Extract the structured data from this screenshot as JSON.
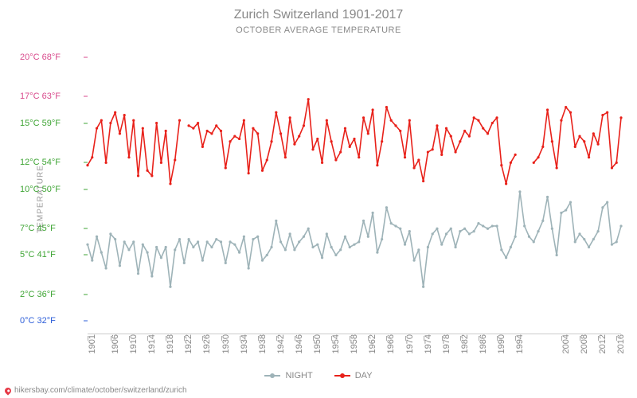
{
  "chart": {
    "type": "line",
    "title": "Zurich Switzerland 1901-2017",
    "subtitle": "OCTOBER AVERAGE TEMPERATURE",
    "y_axis_label": "TEMPERATURE",
    "background_color": "#ffffff",
    "title_fontsize": 16,
    "title_color": "#888888",
    "subtitle_fontsize": 11,
    "subtitle_color": "#888888",
    "axis_label_color": "#999999",
    "xlabel_color": "#888888",
    "grid_color": "#cccccc",
    "x_range": [
      1901,
      2017
    ],
    "y_range_c": [
      -1,
      21
    ],
    "y_ticks": [
      {
        "c": 0,
        "f": 32,
        "label_c": "0°C",
        "label_f": "32°F",
        "color": "#2e5fd9"
      },
      {
        "c": 2,
        "f": 36,
        "label_c": "2°C",
        "label_f": "36°F",
        "color": "#3fa535"
      },
      {
        "c": 5,
        "f": 41,
        "label_c": "5°C",
        "label_f": "41°F",
        "color": "#3fa535"
      },
      {
        "c": 7,
        "f": 45,
        "label_c": "7°C",
        "label_f": "45°F",
        "color": "#3fa535"
      },
      {
        "c": 10,
        "f": 50,
        "label_c": "10°C",
        "label_f": "50°F",
        "color": "#3fa535"
      },
      {
        "c": 12,
        "f": 54,
        "label_c": "12°C",
        "label_f": "54°F",
        "color": "#3fa535"
      },
      {
        "c": 15,
        "f": 59,
        "label_c": "15°C",
        "label_f": "59°F",
        "color": "#3fa535"
      },
      {
        "c": 17,
        "f": 63,
        "label_c": "17°C",
        "label_f": "63°F",
        "color": "#d94a8c"
      },
      {
        "c": 20,
        "f": 68,
        "label_c": "20°C",
        "label_f": "68°F",
        "color": "#d94a8c"
      }
    ],
    "x_ticks": [
      1901,
      1906,
      1910,
      1914,
      1918,
      1922,
      1926,
      1930,
      1934,
      1938,
      1942,
      1946,
      1950,
      1954,
      1958,
      1962,
      1966,
      1970,
      1974,
      1978,
      1982,
      1986,
      1990,
      1994,
      2004,
      2008,
      2012,
      2016
    ],
    "line_width": 1.6,
    "marker_radius": 1.6,
    "series": {
      "night": {
        "label": "NIGHT",
        "color": "#9eb3b8",
        "data": {
          "1901": 5.8,
          "1902": 4.6,
          "1903": 6.4,
          "1904": 5.2,
          "1905": 4.0,
          "1906": 6.6,
          "1907": 6.2,
          "1908": 4.2,
          "1909": 6.0,
          "1910": 5.4,
          "1911": 6.0,
          "1912": 3.6,
          "1913": 5.8,
          "1914": 5.2,
          "1915": 3.4,
          "1916": 5.6,
          "1917": 4.8,
          "1918": 5.6,
          "1919": 2.6,
          "1920": 5.4,
          "1921": 6.2,
          "1922": 4.4,
          "1923": 6.2,
          "1924": 5.6,
          "1925": 6.0,
          "1926": 4.6,
          "1927": 6.0,
          "1928": 5.6,
          "1929": 6.2,
          "1930": 6.0,
          "1931": 4.4,
          "1932": 6.0,
          "1933": 5.8,
          "1934": 5.2,
          "1935": 6.4,
          "1936": 4.0,
          "1937": 6.2,
          "1938": 6.4,
          "1939": 4.6,
          "1940": 5.0,
          "1941": 5.6,
          "1942": 7.6,
          "1943": 6.0,
          "1944": 5.4,
          "1945": 6.6,
          "1946": 5.4,
          "1947": 6.0,
          "1948": 6.4,
          "1949": 7.0,
          "1950": 5.6,
          "1951": 5.8,
          "1952": 4.8,
          "1953": 6.6,
          "1954": 5.6,
          "1955": 5.0,
          "1956": 5.4,
          "1957": 6.4,
          "1958": 5.6,
          "1959": 5.8,
          "1960": 6.0,
          "1961": 7.6,
          "1962": 6.4,
          "1963": 8.2,
          "1964": 5.2,
          "1965": 6.2,
          "1966": 8.6,
          "1967": 7.4,
          "1968": 7.2,
          "1969": 7.0,
          "1970": 5.8,
          "1971": 6.8,
          "1972": 4.6,
          "1973": 5.4,
          "1974": 2.6,
          "1975": 5.6,
          "1976": 6.6,
          "1977": 7.0,
          "1978": 5.8,
          "1979": 6.6,
          "1980": 7.0,
          "1981": 5.6,
          "1982": 6.8,
          "1983": 7.0,
          "1984": 6.6,
          "1985": 6.8,
          "1986": 7.4,
          "1987": 7.2,
          "1988": 7.0,
          "1989": 7.2,
          "1990": 7.2,
          "1991": 5.4,
          "1992": 4.8,
          "1993": 5.6,
          "1994": 6.4,
          "1995": 9.8,
          "1996": 7.2,
          "1997": 6.4,
          "1998": 6.0,
          "1999": 6.8,
          "2000": 7.6,
          "2001": 9.4,
          "2002": 7.0,
          "2003": 5.0,
          "2004": 8.2,
          "2005": 8.4,
          "2006": 9.0,
          "2007": 6.0,
          "2008": 6.6,
          "2009": 6.2,
          "2010": 5.6,
          "2011": 6.2,
          "2012": 6.8,
          "2013": 8.6,
          "2014": 9.0,
          "2015": 5.8,
          "2016": 6.0,
          "2017": 7.2
        }
      },
      "day": {
        "label": "DAY",
        "color": "#e8211a",
        "data": {
          "1901": 11.8,
          "1902": 12.4,
          "1903": 14.6,
          "1904": 15.2,
          "1905": 12.0,
          "1906": 15.0,
          "1907": 15.8,
          "1908": 14.2,
          "1909": 15.6,
          "1910": 12.4,
          "1911": 15.2,
          "1912": 11.0,
          "1913": 14.6,
          "1914": 11.4,
          "1915": 11.0,
          "1916": 15.0,
          "1917": 12.0,
          "1918": 14.4,
          "1919": 10.4,
          "1920": 12.2,
          "1921": 15.2,
          "1923": 14.8,
          "1924": 14.6,
          "1925": 15.0,
          "1926": 13.2,
          "1927": 14.4,
          "1928": 14.2,
          "1929": 14.8,
          "1930": 14.4,
          "1931": 11.6,
          "1932": 13.6,
          "1933": 14.0,
          "1934": 13.8,
          "1935": 15.2,
          "1936": 11.2,
          "1937": 14.6,
          "1938": 14.2,
          "1939": 11.4,
          "1940": 12.2,
          "1941": 13.6,
          "1942": 15.8,
          "1943": 14.2,
          "1944": 12.4,
          "1945": 15.4,
          "1946": 13.4,
          "1947": 14.0,
          "1948": 14.8,
          "1949": 16.8,
          "1950": 13.0,
          "1951": 13.8,
          "1952": 12.0,
          "1953": 15.2,
          "1954": 13.6,
          "1955": 12.2,
          "1956": 12.8,
          "1957": 14.6,
          "1958": 13.2,
          "1959": 13.8,
          "1960": 12.4,
          "1961": 15.4,
          "1962": 14.2,
          "1963": 16.0,
          "1964": 11.8,
          "1965": 13.6,
          "1966": 16.2,
          "1967": 15.2,
          "1968": 14.8,
          "1969": 14.4,
          "1970": 12.4,
          "1971": 15.2,
          "1972": 11.6,
          "1973": 12.2,
          "1974": 10.6,
          "1975": 12.8,
          "1976": 13.0,
          "1977": 14.8,
          "1978": 12.6,
          "1979": 14.6,
          "1980": 14.0,
          "1981": 12.8,
          "1982": 13.6,
          "1983": 14.4,
          "1984": 14.0,
          "1985": 15.4,
          "1986": 15.2,
          "1987": 14.6,
          "1988": 14.2,
          "1989": 15.0,
          "1990": 15.4,
          "1991": 11.8,
          "1992": 10.4,
          "1993": 12.0,
          "1994": 12.6,
          "1998": 12.0,
          "1999": 12.4,
          "2000": 13.2,
          "2001": 16.0,
          "2002": 13.6,
          "2003": 11.6,
          "2004": 15.2,
          "2005": 16.2,
          "2006": 15.8,
          "2007": 13.2,
          "2008": 14.0,
          "2009": 13.6,
          "2010": 12.4,
          "2011": 14.2,
          "2012": 13.4,
          "2013": 15.6,
          "2014": 15.8,
          "2015": 11.6,
          "2016": 12.0,
          "2017": 15.4
        }
      }
    },
    "legend": {
      "night": "NIGHT",
      "day": "DAY"
    }
  },
  "footer": {
    "url": "hikersbay.com/climate/october/switzerland/zurich"
  }
}
